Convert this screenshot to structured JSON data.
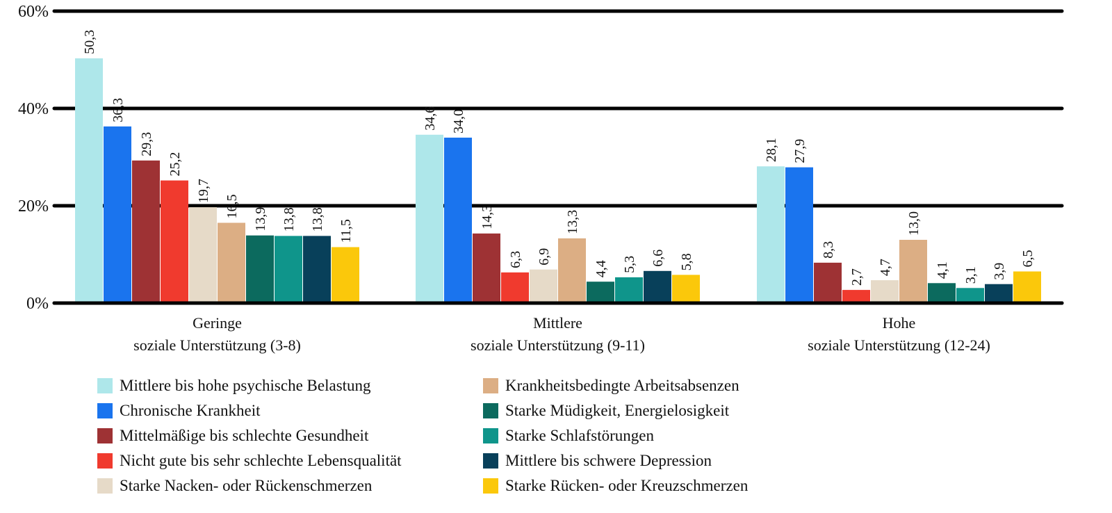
{
  "chart_data": {
    "type": "bar",
    "title": "",
    "xlabel": "",
    "ylabel": "",
    "ylim": [
      0,
      60
    ],
    "yticks": [
      "0%",
      "20%",
      "40%",
      "60%"
    ],
    "grid": true,
    "legend_position": "bottom",
    "categories": [
      [
        "Geringe",
        "soziale Unterstützung (3-8)"
      ],
      [
        "Mittlere",
        "soziale Unterstützung (9-11)"
      ],
      [
        "Hohe",
        "soziale Unterstützung (12-24)"
      ]
    ],
    "series": [
      {
        "name": "Mittlere bis hohe psychische Belastung",
        "color": "#aee7ea",
        "values": [
          50.3,
          34.6,
          28.1
        ],
        "labels": [
          "50,3",
          "34,6",
          "28,1"
        ]
      },
      {
        "name": "Chronische Krankheit",
        "color": "#1a74ee",
        "values": [
          36.3,
          34.0,
          27.9
        ],
        "labels": [
          "36,3",
          "34,0",
          "27,9"
        ]
      },
      {
        "name": "Mittelmäßige bis schlechte Gesundheit",
        "color": "#9e3234",
        "values": [
          29.3,
          14.3,
          8.3
        ],
        "labels": [
          "29,3",
          "14,3",
          "8,3"
        ]
      },
      {
        "name": "Nicht gute bis sehr schlechte Lebensqualität",
        "color": "#f03a2e",
        "values": [
          25.2,
          6.3,
          2.7
        ],
        "labels": [
          "25,2",
          "6,3",
          "2,7"
        ]
      },
      {
        "name": "Starke Nacken- oder Rückenschmerzen",
        "color": "#e6dac8",
        "values": [
          19.7,
          6.9,
          4.7
        ],
        "labels": [
          "19,7",
          "6,9",
          "4,7"
        ]
      },
      {
        "name": "Krankheitsbedingte Arbeitsabsenzen",
        "color": "#dcae84",
        "values": [
          16.5,
          13.3,
          13.0
        ],
        "labels": [
          "16,5",
          "13,3",
          "13,0"
        ]
      },
      {
        "name": "Starke Müdigkeit, Energielosigkeit",
        "color": "#0c6a5e",
        "values": [
          13.9,
          4.4,
          4.1
        ],
        "labels": [
          "13,9",
          "4,4",
          "4,1"
        ]
      },
      {
        "name": "Starke Schlafstörungen",
        "color": "#0f958b",
        "values": [
          13.8,
          5.3,
          3.1
        ],
        "labels": [
          "13,8",
          "5,3",
          "3,1"
        ]
      },
      {
        "name": "Mittlere bis schwere Depression",
        "color": "#08405a",
        "values": [
          13.8,
          6.6,
          3.9
        ],
        "labels": [
          "13,8",
          "6,6",
          "3,9"
        ]
      },
      {
        "name": "Starke Rücken- oder Kreuzschmerzen",
        "color": "#fbc80b",
        "values": [
          11.5,
          5.8,
          6.5
        ],
        "labels": [
          "11,5",
          "5,8",
          "6,5"
        ]
      }
    ]
  }
}
